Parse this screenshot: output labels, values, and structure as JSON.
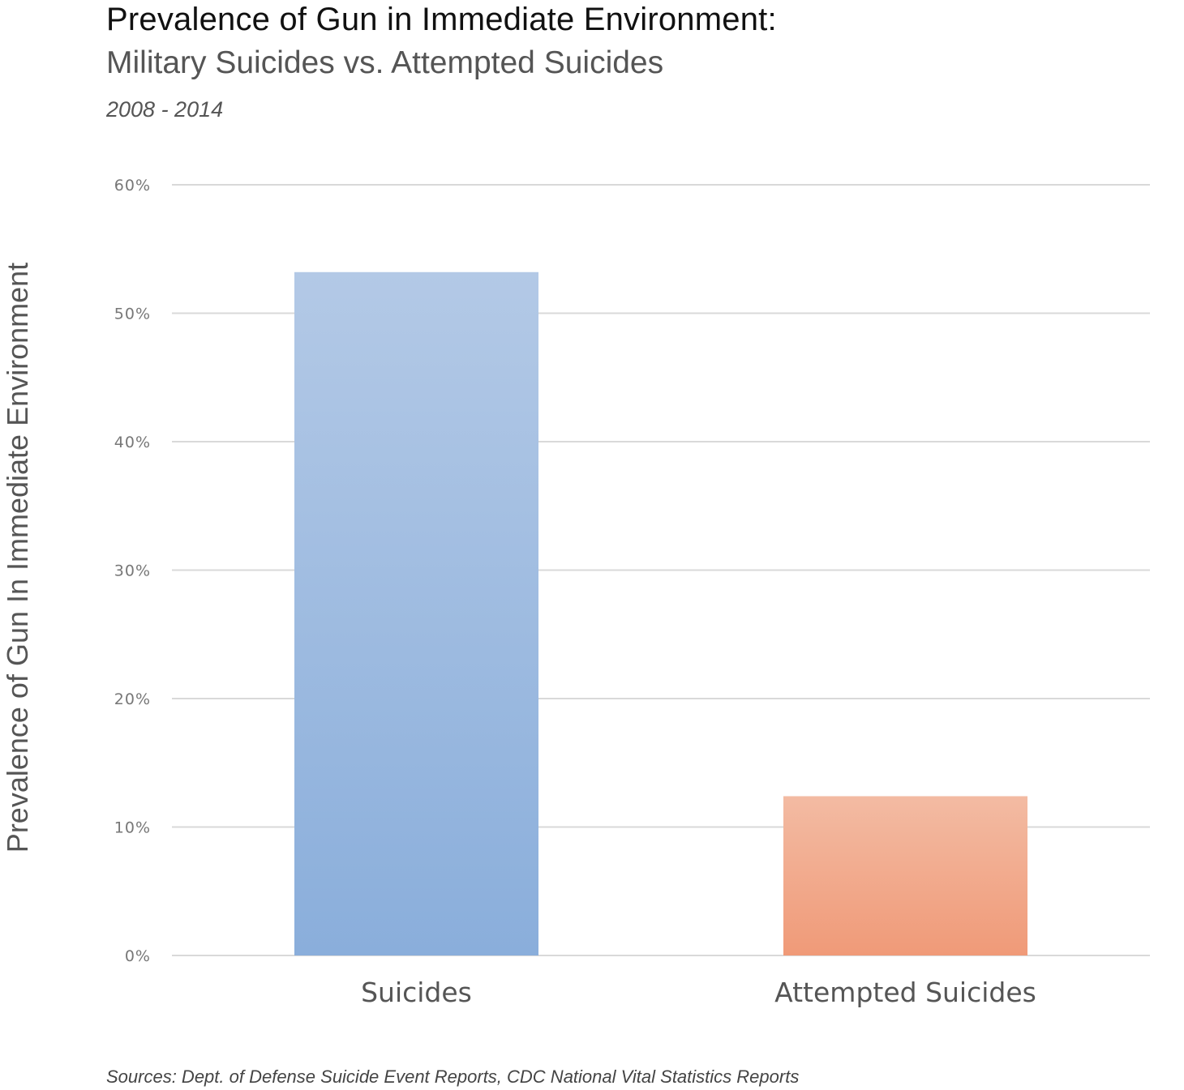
{
  "chart_data": {
    "type": "bar",
    "title": "Prevalence of Gun in Immediate Environment:",
    "subtitle": "Military Suicides vs. Attempted Suicides",
    "date_range": "2008 - 2014",
    "xlabel": "",
    "ylabel": "Prevalence of Gun In Immediate Environment",
    "categories": [
      "Suicides",
      "Attempted Suicides"
    ],
    "values": [
      53.2,
      12.4
    ],
    "ylim": [
      0,
      60
    ],
    "yticks": [
      0,
      10,
      20,
      30,
      40,
      50,
      60
    ],
    "ytick_labels": [
      "0%",
      "10%",
      "20%",
      "30%",
      "40%",
      "50%",
      "60%"
    ],
    "colors": [
      "#8aaedb",
      "#f09a78"
    ],
    "color_tops": [
      "#b3c9e6",
      "#f3bba3"
    ],
    "grid": true,
    "source": "Sources: Dept. of Defense Suicide Event Reports, CDC National Vital Statistics Reports"
  }
}
